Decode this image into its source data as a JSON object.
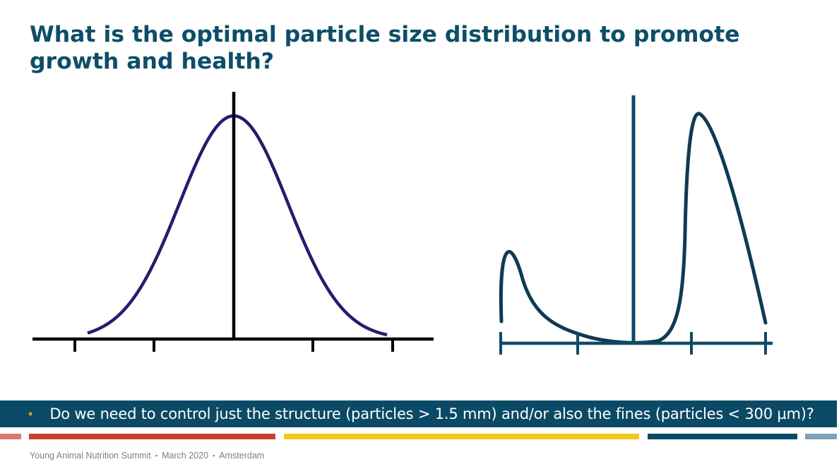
{
  "title": "What is the optimal particle size distribution to promote growth and health?",
  "question": {
    "bullet": "•",
    "text": "Do we need to control just the structure (particles > 1.5 mm) and/or also the fines (particles < 300 µm)?"
  },
  "footer": {
    "event": "Young Animal Nutrition Summit",
    "date": "March 2020",
    "location": "Amsterdam",
    "separator": "▪"
  },
  "colors": {
    "title": "#0d4e68",
    "bar": "#0b4a66",
    "bullet": "#d8a21e",
    "normal_curve": "#2a1a6e",
    "bimodal_curve": "#0f3a52",
    "bimodal_axis": "#0d4a66",
    "stripes": [
      "#d97a6e",
      "#c8402c",
      "#f2c81c",
      "#0b4a66",
      "#7fa2b8"
    ]
  },
  "diagrams": {
    "left": {
      "shape": "normal-distribution",
      "axis_ticks": 4,
      "center_line": true
    },
    "right": {
      "shape": "bimodal-distribution",
      "axis_ticks": 4,
      "center_line": true
    }
  }
}
